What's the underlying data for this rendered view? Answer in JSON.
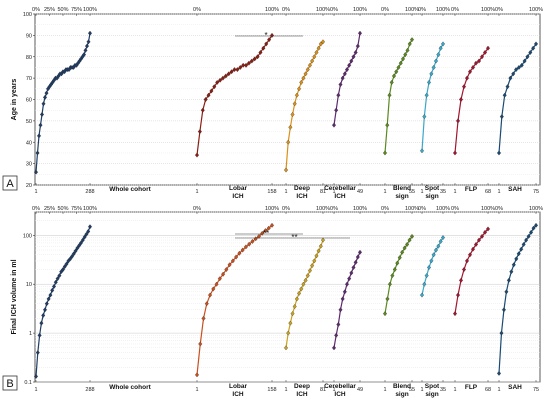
{
  "chart_data": [
    {
      "type": "line",
      "panel_label": "A",
      "ylabel": "Age in years",
      "ylim": [
        20,
        100
      ],
      "yscale": "linear",
      "yticks": [
        "20",
        "30",
        "40",
        "50",
        "60",
        "70",
        "80",
        "90",
        "100"
      ],
      "grid": true,
      "significance": [
        {
          "from": "Lobar ICH",
          "to": "Deep ICH",
          "label": "*"
        }
      ],
      "groups": [
        {
          "name": "Whole cohort",
          "n": 288,
          "n_label": "288",
          "start_label": "1",
          "color": "#1f3d66",
          "pct_ticks": [
            "0%",
            "25%",
            "50%",
            "75%",
            "100%"
          ],
          "values": [
            26,
            35,
            43,
            48,
            53,
            58,
            61,
            63,
            65,
            66,
            67,
            68,
            69,
            70,
            70,
            71,
            72,
            72,
            73,
            73,
            74,
            74,
            74,
            75,
            75,
            75,
            76,
            76,
            77,
            78,
            79,
            80,
            81,
            83,
            85,
            87,
            91
          ]
        },
        {
          "name": "Lobar ICH",
          "n": 158,
          "n_label": "158",
          "start_label": "1",
          "color": "#8b1e12",
          "pct_ticks": [
            "0%",
            "100%"
          ],
          "values": [
            34,
            45,
            55,
            60,
            62,
            64,
            66,
            68,
            69,
            70,
            71,
            72,
            73,
            74,
            74,
            75,
            76,
            76,
            77,
            78,
            79,
            80,
            82,
            84,
            86,
            88,
            90
          ]
        },
        {
          "name": "Deep ICH",
          "n": 81,
          "n_label": "81",
          "start_label": "1",
          "color": "#d9901a",
          "pct_ticks": [
            "0%",
            "100%"
          ],
          "values": [
            27,
            40,
            47,
            53,
            58,
            62,
            65,
            68,
            70,
            72,
            74,
            76,
            78,
            80,
            82,
            84,
            86,
            87
          ]
        },
        {
          "name": "Cerebellar ICH",
          "n": 49,
          "n_label": "49",
          "start_label": "1",
          "color": "#5e2a6f",
          "pct_ticks": [
            "0%",
            "100%"
          ],
          "values": [
            48,
            55,
            62,
            67,
            70,
            72,
            74,
            76,
            78,
            80,
            82,
            85,
            91
          ]
        },
        {
          "name": "Blend sign",
          "n": 55,
          "n_label": "55",
          "start_label": "1",
          "color": "#5a8a1f",
          "pct_ticks": [
            "0%",
            "100%"
          ],
          "values": [
            35,
            48,
            62,
            68,
            71,
            73,
            75,
            77,
            79,
            81,
            83,
            86,
            88
          ]
        },
        {
          "name": "Spot sign",
          "n": 35,
          "n_label": "35",
          "start_label": "1",
          "color": "#3aa7c9",
          "pct_ticks": [
            "0%",
            "100%"
          ],
          "values": [
            36,
            52,
            62,
            68,
            72,
            75,
            78,
            81,
            84,
            86
          ]
        },
        {
          "name": "FLP",
          "n": 68,
          "n_label": "68",
          "start_label": "1",
          "color": "#a3162f",
          "pct_ticks": [
            "0%",
            "100%"
          ],
          "values": [
            35,
            50,
            60,
            66,
            70,
            73,
            75,
            77,
            78,
            80,
            82,
            84
          ]
        },
        {
          "name": "SAH",
          "n": 75,
          "n_label": "75",
          "start_label": "1",
          "color": "#1a4a73",
          "pct_ticks": [
            "0%",
            "100%"
          ],
          "values": [
            35,
            52,
            62,
            66,
            70,
            72,
            74,
            75,
            76,
            78,
            80,
            82,
            84,
            86
          ]
        }
      ]
    },
    {
      "type": "line",
      "panel_label": "B",
      "ylabel": "Final ICH volume in ml",
      "ylim": [
        0.1,
        300
      ],
      "yscale": "log",
      "yticks": [
        "0.1",
        "1",
        "10",
        "100"
      ],
      "grid": true,
      "significance": [
        {
          "from": "Lobar ICH",
          "to": "Deep ICH",
          "label": "**"
        },
        {
          "from": "Lobar ICH",
          "to": "Cerebellar ICH",
          "label": "**"
        }
      ],
      "groups": [
        {
          "name": "Whole cohort",
          "n": 288,
          "n_label": "288",
          "start_label": "1",
          "color": "#1f3d66",
          "pct_ticks": [
            "0%",
            "25%",
            "50%",
            "75%",
            "100%"
          ],
          "values": [
            0.13,
            0.4,
            0.9,
            1.6,
            2.3,
            3,
            4,
            5,
            6,
            7.5,
            9,
            11,
            13,
            15,
            18,
            20,
            23,
            26,
            30,
            33,
            37,
            42,
            48,
            55,
            62,
            70,
            80,
            92,
            105,
            120,
            150
          ]
        },
        {
          "name": "Lobar ICH",
          "n": 158,
          "n_label": "158",
          "start_label": "1",
          "color": "#c8501e",
          "pct_ticks": [
            "0%",
            "100%"
          ],
          "values": [
            0.14,
            0.6,
            2,
            4,
            6,
            8,
            10,
            13,
            16,
            20,
            25,
            30,
            36,
            43,
            50,
            58,
            66,
            75,
            85,
            95,
            110,
            125,
            140,
            160
          ]
        },
        {
          "name": "Deep ICH",
          "n": 81,
          "n_label": "81",
          "start_label": "1",
          "color": "#c9a020",
          "pct_ticks": [
            "0%",
            "100%"
          ],
          "values": [
            0.5,
            1,
            1.6,
            2.5,
            3.5,
            5,
            6.5,
            8,
            10,
            12,
            15,
            19,
            24,
            30,
            38,
            48,
            60,
            80
          ]
        },
        {
          "name": "Cerebellar ICH",
          "n": 49,
          "n_label": "49",
          "start_label": "1",
          "color": "#5e2a6f",
          "pct_ticks": [
            "0%",
            "100%"
          ],
          "values": [
            0.5,
            0.9,
            1.5,
            3,
            5,
            7,
            10,
            13,
            17,
            22,
            28,
            36,
            45
          ]
        },
        {
          "name": "Blend sign",
          "n": 55,
          "n_label": "55",
          "start_label": "1",
          "color": "#5a8a1f",
          "pct_ticks": [
            "0%",
            "100%"
          ],
          "values": [
            2.5,
            5,
            10,
            15,
            20,
            27,
            35,
            45,
            55,
            65,
            80,
            95
          ]
        },
        {
          "name": "Spot sign",
          "n": 35,
          "n_label": "35",
          "start_label": "1",
          "color": "#3aa7c9",
          "pct_ticks": [
            "0%",
            "100%"
          ],
          "values": [
            6,
            10,
            15,
            22,
            30,
            40,
            50,
            60,
            75,
            90
          ]
        },
        {
          "name": "FLP",
          "n": 68,
          "n_label": "68",
          "start_label": "1",
          "color": "#a3162f",
          "pct_ticks": [
            "0%",
            "100%"
          ],
          "values": [
            2.5,
            6,
            12,
            20,
            30,
            40,
            52,
            65,
            80,
            95,
            115,
            135
          ]
        },
        {
          "name": "SAH",
          "n": 75,
          "n_label": "75",
          "start_label": "1",
          "color": "#1a4a73",
          "pct_ticks": [
            "0%",
            "100%"
          ],
          "values": [
            0.15,
            1,
            3,
            7,
            12,
            18,
            25,
            33,
            42,
            52,
            65,
            80,
            95,
            115,
            140,
            160
          ]
        }
      ]
    }
  ]
}
